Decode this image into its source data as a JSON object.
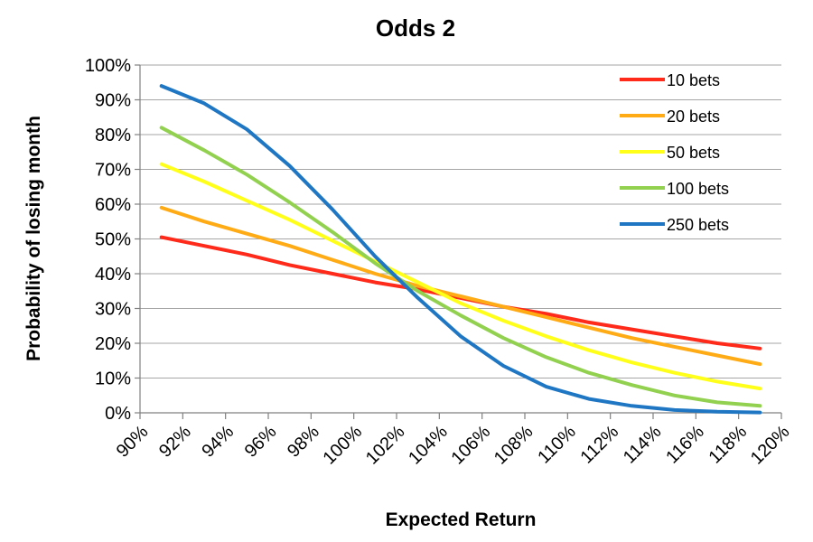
{
  "chart_data": {
    "type": "line",
    "title": "Odds 2",
    "xlabel": "Expected Return",
    "ylabel": "Probability of losing month",
    "x_tick_labels": [
      "90%",
      "92%",
      "94%",
      "96%",
      "98%",
      "100%",
      "102%",
      "104%",
      "106%",
      "108%",
      "110%",
      "112%",
      "114%",
      "116%",
      "118%",
      "120%"
    ],
    "y_tick_labels": [
      "0%",
      "10%",
      "20%",
      "30%",
      "40%",
      "50%",
      "60%",
      "70%",
      "80%",
      "90%",
      "100%"
    ],
    "xlim": [
      90,
      120
    ],
    "ylim": [
      0,
      100
    ],
    "x": [
      91,
      93,
      95,
      97,
      99,
      101,
      103,
      105,
      107,
      109,
      111,
      113,
      115,
      117,
      119
    ],
    "series": [
      {
        "name": "10 bets",
        "color": "#ff2a1a",
        "values": [
          50.5,
          48,
          45.5,
          42.5,
          40,
          37.5,
          35.5,
          33,
          30.5,
          28.5,
          26,
          24,
          22,
          20,
          18.5
        ]
      },
      {
        "name": "20 bets",
        "color": "#ffab16",
        "values": [
          59,
          55,
          51.5,
          48,
          44,
          40,
          36.5,
          33.5,
          30.5,
          27.5,
          24.5,
          21.5,
          19,
          16.5,
          14
        ]
      },
      {
        "name": "50 bets",
        "color": "#ffff1a",
        "values": [
          71.5,
          66.5,
          61,
          55.5,
          49.5,
          43.5,
          37.5,
          31.5,
          26.5,
          22,
          18,
          14.5,
          11.5,
          9,
          7
        ]
      },
      {
        "name": "100 bets",
        "color": "#92d050",
        "values": [
          82,
          75.5,
          68.5,
          60.5,
          52,
          43,
          35,
          28,
          21.5,
          16,
          11.5,
          8,
          5,
          3,
          2
        ]
      },
      {
        "name": "250 bets",
        "color": "#1f77c4",
        "values": [
          94,
          89,
          81.5,
          71,
          58.5,
          45,
          33,
          22,
          13.5,
          7.5,
          4,
          2,
          0.8,
          0.3,
          0.1
        ]
      }
    ],
    "grid": true,
    "legend_position": "top-right"
  }
}
